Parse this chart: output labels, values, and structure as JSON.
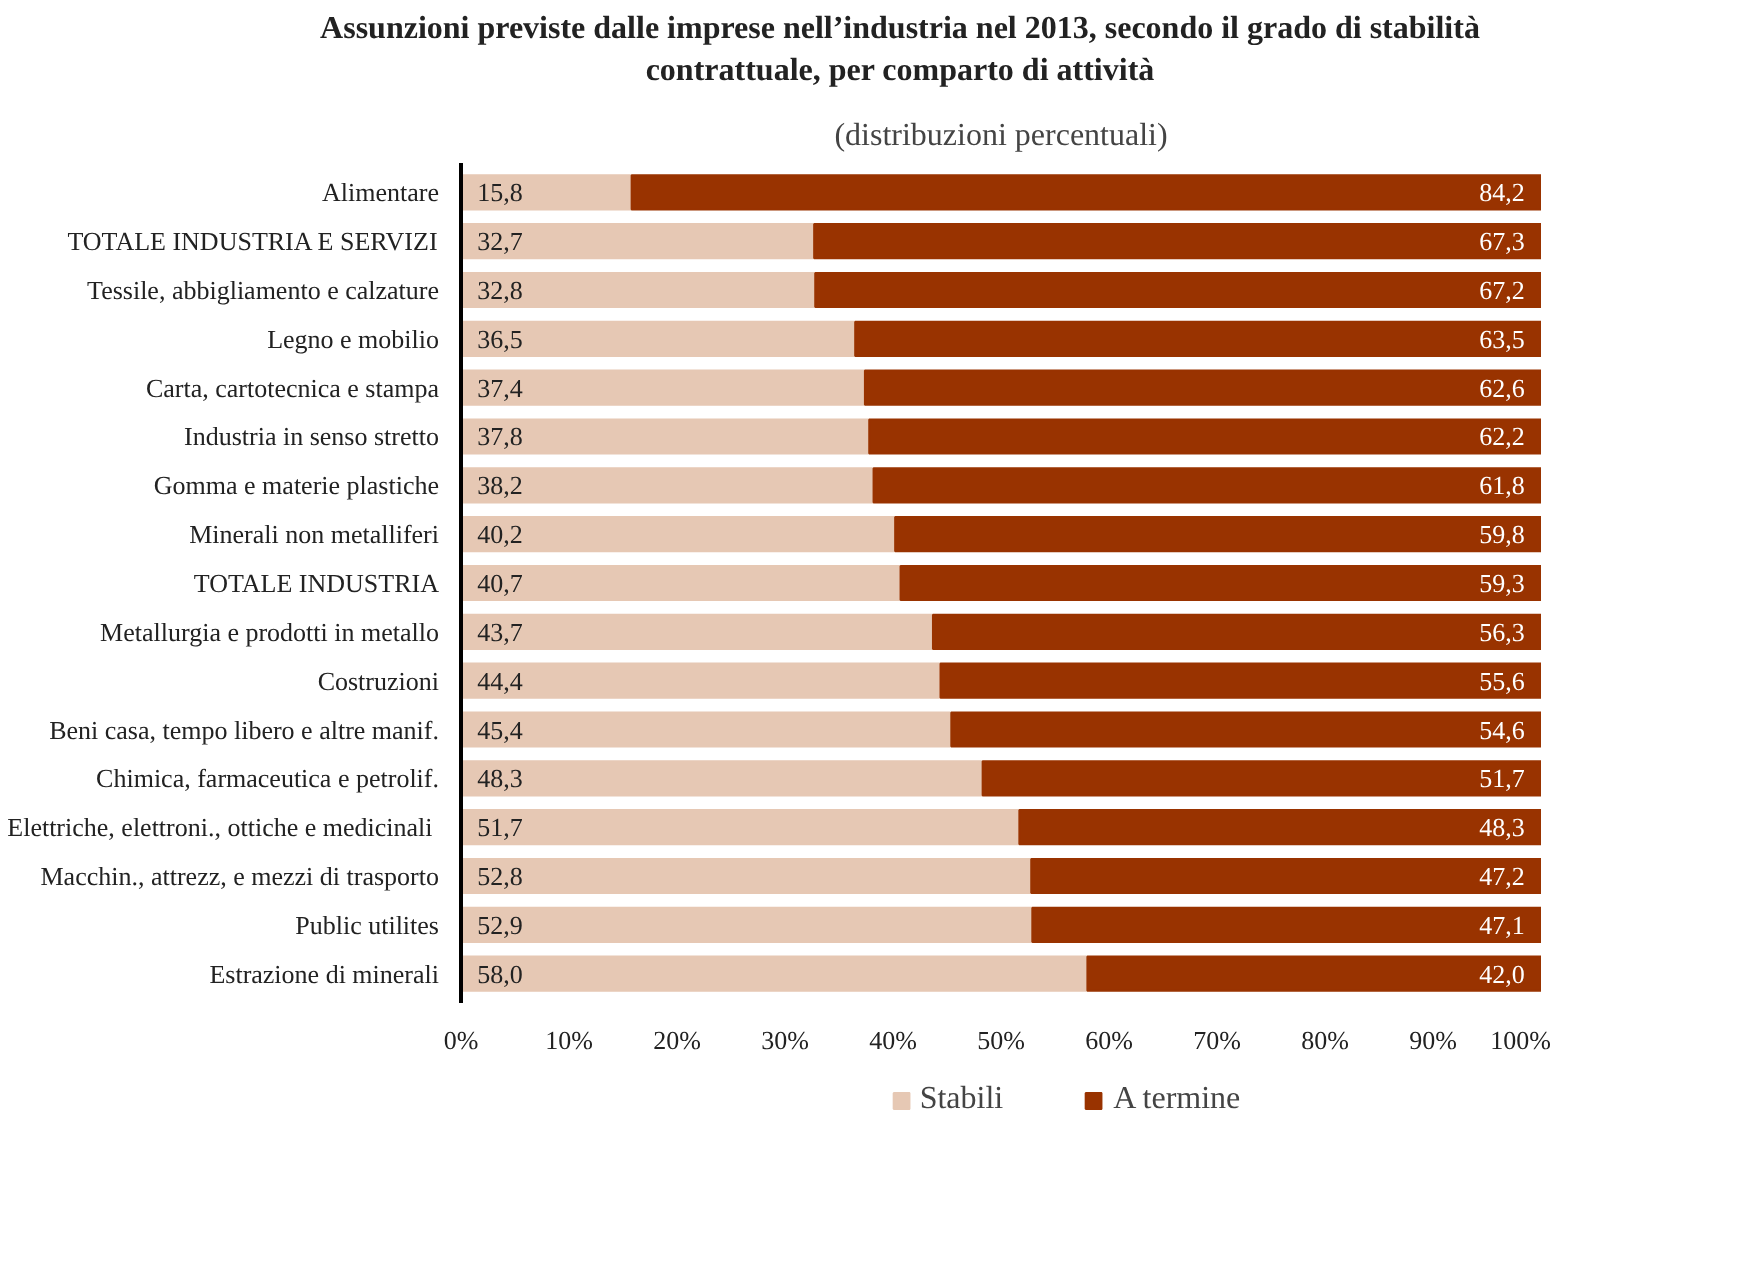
{
  "chart_data": {
    "type": "bar",
    "orientation": "horizontal",
    "stacked": true,
    "title": "Assunzioni previste dalle imprese nell’industria nel 2013, secondo il grado di stabilità contrattuale, per comparto di attività",
    "subtitle": "(distribuzioni percentuali)",
    "categories": [
      "Alimentare",
      "TOTALE INDUSTRIA E SERVIZI",
      "Tessile, abbigliamento e calzature",
      "Legno e mobilio",
      "Carta, cartotecnica e stampa",
      "Industria in senso stretto",
      "Gomma e materie plastiche",
      "Minerali non metalliferi",
      "TOTALE INDUSTRIA",
      "Metallurgia e prodotti in metallo",
      "Costruzioni",
      "Beni casa, tempo libero e altre manif.",
      "Chimica, farmaceutica e petrolif.",
      "Elettriche, elettroni., ottiche  e medicinali",
      "Macchin., attrezz, e mezzi di trasporto",
      "Public utilites",
      "Estrazione di minerali"
    ],
    "series": [
      {
        "name": "Stabili",
        "color": "#e6c8b4",
        "values": [
          15.8,
          32.7,
          32.8,
          36.5,
          37.4,
          37.8,
          38.2,
          40.2,
          40.7,
          43.7,
          44.4,
          45.4,
          48.3,
          51.7,
          52.8,
          52.9,
          58.0
        ],
        "value_labels": [
          "15,8",
          "32,7",
          "32,8",
          "36,5",
          "37,4",
          "37,8",
          "38,2",
          "40,2",
          "40,7",
          "43,7",
          "44,4",
          "45,4",
          "48,3",
          "51,7",
          "52,8",
          "52,9",
          "58,0"
        ]
      },
      {
        "name": "A termine",
        "color": "#993300",
        "values": [
          84.2,
          67.3,
          67.2,
          63.5,
          62.6,
          62.2,
          61.8,
          59.8,
          59.3,
          56.3,
          55.6,
          54.6,
          51.7,
          48.3,
          47.2,
          47.1,
          42.0
        ],
        "value_labels": [
          "84,2",
          "67,3",
          "67,2",
          "63,5",
          "62,6",
          "62,2",
          "61,8",
          "59,8",
          "59,3",
          "56,3",
          "55,6",
          "54,6",
          "51,7",
          "48,3",
          "47,2",
          "47,1",
          "42,0"
        ]
      }
    ],
    "xlim": [
      0,
      100
    ],
    "xticks": [
      {
        "value": 0,
        "label": "0%"
      },
      {
        "value": 10,
        "label": "10%"
      },
      {
        "value": 20,
        "label": "20%"
      },
      {
        "value": 30,
        "label": "30%"
      },
      {
        "value": 40,
        "label": "40%"
      },
      {
        "value": 50,
        "label": "50%"
      },
      {
        "value": 60,
        "label": "60%"
      },
      {
        "value": 70,
        "label": "70%"
      },
      {
        "value": 80,
        "label": "80%"
      },
      {
        "value": 90,
        "label": "90%"
      },
      {
        "value": 100,
        "label": "100%"
      }
    ],
    "legend": "bottom",
    "grid": false
  }
}
